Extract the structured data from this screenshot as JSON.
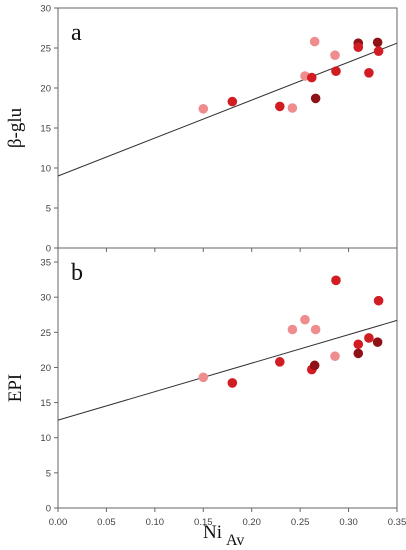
{
  "figure": {
    "ylabel_a": "β-glu",
    "ylabel_b": "EPI",
    "xlabel_main": "Ni",
    "xlabel_sub": "Av",
    "colors": {
      "axis": "#666666",
      "fit_line": "#333333",
      "dark": "#8e1216",
      "mid": "#d01c22",
      "light": "#ee8c8e"
    }
  },
  "chart_data": [
    {
      "type": "scatter",
      "panel_label": "a",
      "xlabel": "Ni Av",
      "ylabel": "β-glu",
      "xlim": [
        0,
        0.35
      ],
      "ylim": [
        0,
        30
      ],
      "x_ticks": [
        0,
        0.05,
        0.1,
        0.15,
        0.2,
        0.25,
        0.3,
        0.35
      ],
      "y_ticks": [
        0,
        5,
        10,
        15,
        20,
        25,
        30
      ],
      "x_tick_labels": [
        "0.00",
        "0.05",
        "0.10",
        "0.15",
        "0.20",
        "0.25",
        "0.30",
        "0.35"
      ],
      "y_tick_labels": [
        "0",
        "5",
        "10",
        "15",
        "20",
        "25",
        "30"
      ],
      "fit_line": {
        "x": [
          0,
          0.35
        ],
        "y": [
          9.0,
          25.6
        ]
      },
      "points": [
        {
          "x": 0.15,
          "y": 17.4,
          "shade": "light"
        },
        {
          "x": 0.18,
          "y": 18.3,
          "shade": "mid"
        },
        {
          "x": 0.229,
          "y": 17.7,
          "shade": "mid"
        },
        {
          "x": 0.242,
          "y": 17.5,
          "shade": "light"
        },
        {
          "x": 0.255,
          "y": 21.5,
          "shade": "light"
        },
        {
          "x": 0.262,
          "y": 21.3,
          "shade": "mid"
        },
        {
          "x": 0.265,
          "y": 25.8,
          "shade": "light"
        },
        {
          "x": 0.266,
          "y": 18.7,
          "shade": "dark"
        },
        {
          "x": 0.286,
          "y": 24.1,
          "shade": "light"
        },
        {
          "x": 0.287,
          "y": 22.1,
          "shade": "mid"
        },
        {
          "x": 0.31,
          "y": 25.6,
          "shade": "dark"
        },
        {
          "x": 0.31,
          "y": 25.1,
          "shade": "mid"
        },
        {
          "x": 0.321,
          "y": 21.9,
          "shade": "mid"
        },
        {
          "x": 0.33,
          "y": 25.7,
          "shade": "dark"
        },
        {
          "x": 0.331,
          "y": 24.6,
          "shade": "mid"
        }
      ]
    },
    {
      "type": "scatter",
      "panel_label": "b",
      "xlabel": "Ni Av",
      "ylabel": "EPI",
      "xlim": [
        0,
        0.35
      ],
      "ylim": [
        0,
        37
      ],
      "x_ticks": [
        0,
        0.05,
        0.1,
        0.15,
        0.2,
        0.25,
        0.3,
        0.35
      ],
      "y_ticks": [
        0,
        5,
        10,
        15,
        20,
        25,
        30,
        35
      ],
      "x_tick_labels": [
        "0.00",
        "0.05",
        "0.10",
        "0.15",
        "0.20",
        "0.25",
        "0.30",
        "0.35"
      ],
      "y_tick_labels": [
        "0",
        "5",
        "10",
        "15",
        "20",
        "25",
        "30",
        "35"
      ],
      "fit_line": {
        "x": [
          0,
          0.35
        ],
        "y": [
          12.5,
          26.7
        ]
      },
      "points": [
        {
          "x": 0.15,
          "y": 18.6,
          "shade": "light"
        },
        {
          "x": 0.18,
          "y": 17.8,
          "shade": "mid"
        },
        {
          "x": 0.229,
          "y": 20.8,
          "shade": "mid"
        },
        {
          "x": 0.242,
          "y": 25.4,
          "shade": "light"
        },
        {
          "x": 0.255,
          "y": 26.8,
          "shade": "light"
        },
        {
          "x": 0.262,
          "y": 19.7,
          "shade": "mid"
        },
        {
          "x": 0.265,
          "y": 20.3,
          "shade": "dark"
        },
        {
          "x": 0.266,
          "y": 25.4,
          "shade": "light"
        },
        {
          "x": 0.286,
          "y": 21.6,
          "shade": "light"
        },
        {
          "x": 0.287,
          "y": 32.4,
          "shade": "mid"
        },
        {
          "x": 0.31,
          "y": 23.3,
          "shade": "mid"
        },
        {
          "x": 0.31,
          "y": 22.0,
          "shade": "dark"
        },
        {
          "x": 0.321,
          "y": 24.2,
          "shade": "mid"
        },
        {
          "x": 0.33,
          "y": 23.6,
          "shade": "dark"
        },
        {
          "x": 0.331,
          "y": 29.5,
          "shade": "mid"
        }
      ]
    }
  ]
}
